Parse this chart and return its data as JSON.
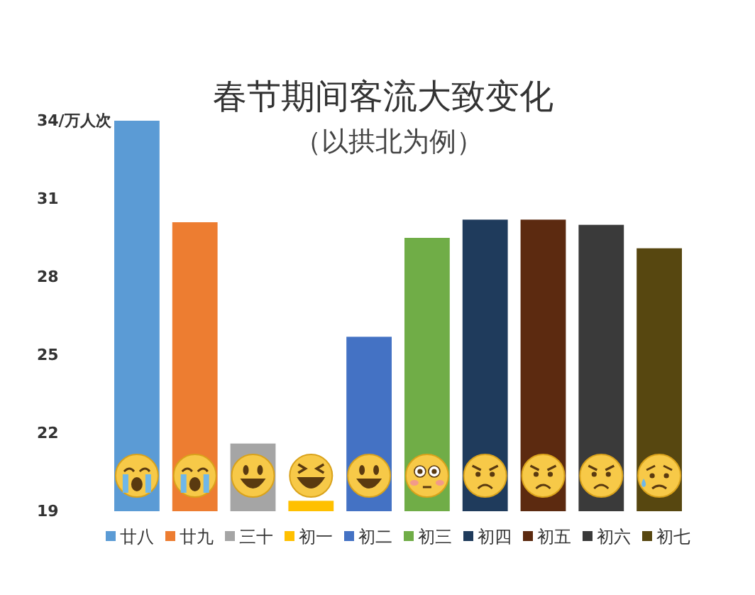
{
  "chart_data": {
    "type": "bar",
    "title": "春节期间客流大致变化",
    "subtitle": "（以拱北为例）",
    "categories": [
      null,
      null,
      null,
      null,
      null,
      null,
      null,
      null,
      null,
      null
    ],
    "stacked": true,
    "series": [
      {
        "name": "廿八",
        "color": "#5b9bd5",
        "values": [
          34.0,
          null,
          null,
          null,
          null,
          null,
          null,
          null,
          null,
          null
        ]
      },
      {
        "name": "廿九",
        "color": "#ed7d31",
        "values": [
          null,
          30.1,
          null,
          null,
          null,
          null,
          null,
          null,
          null,
          null
        ]
      },
      {
        "name": "三十",
        "color": "#a5a5a5",
        "values": [
          null,
          null,
          21.6,
          null,
          null,
          null,
          null,
          null,
          null,
          null
        ]
      },
      {
        "name": "初一",
        "color": "#ffc000",
        "values": [
          null,
          null,
          null,
          19.4,
          null,
          null,
          null,
          null,
          null,
          null
        ]
      },
      {
        "name": "初二",
        "color": "#4472c4",
        "values": [
          null,
          null,
          null,
          null,
          25.7,
          null,
          null,
          null,
          null,
          null
        ]
      },
      {
        "name": "初三",
        "color": "#70ad47",
        "values": [
          null,
          null,
          null,
          null,
          null,
          29.5,
          null,
          null,
          null,
          null
        ]
      },
      {
        "name": "初四",
        "color": "#1f3b5c",
        "values": [
          null,
          null,
          null,
          null,
          null,
          null,
          30.2,
          null,
          null,
          null
        ]
      },
      {
        "name": "初五",
        "color": "#5c2a10",
        "values": [
          null,
          null,
          null,
          null,
          null,
          null,
          null,
          30.2,
          null,
          null
        ]
      },
      {
        "name": "初六",
        "color": "#3a3a3a",
        "values": [
          null,
          null,
          null,
          null,
          null,
          null,
          null,
          null,
          30.0,
          null
        ]
      },
      {
        "name": "初七",
        "color": "#574710",
        "values": [
          null,
          null,
          null,
          null,
          null,
          null,
          null,
          null,
          null,
          29.1
        ]
      }
    ],
    "ylim": [
      19,
      34
    ],
    "yticks": [
      19,
      22,
      25,
      28,
      31,
      {
        "value": 34,
        "label": "34/万人次"
      }
    ],
    "legend": "bottom",
    "tick_labels": "y"
  }
}
